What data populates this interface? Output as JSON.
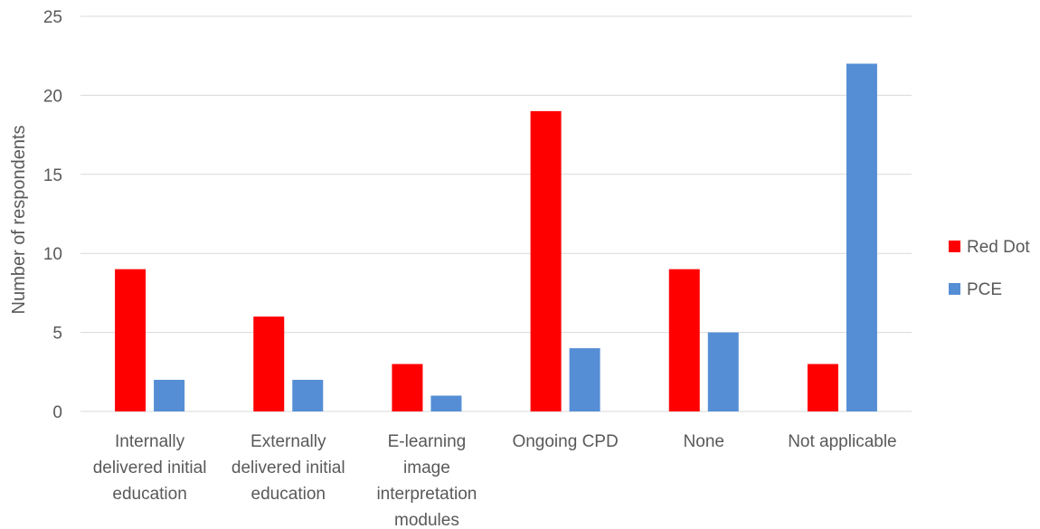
{
  "chart_data": {
    "type": "bar",
    "categories": [
      [
        "Internally",
        "delivered initial",
        "education"
      ],
      [
        "Externally",
        "delivered initial",
        "education"
      ],
      [
        "E-learning",
        "image",
        "interpretation",
        "modules"
      ],
      [
        "Ongoing CPD"
      ],
      [
        "None"
      ],
      [
        "Not applicable"
      ]
    ],
    "series": [
      {
        "name": "Red Dot",
        "color": "#ff0000",
        "values": [
          9,
          6,
          3,
          19,
          9,
          3
        ]
      },
      {
        "name": "PCE",
        "color": "#558ed5",
        "values": [
          2,
          2,
          1,
          4,
          5,
          22
        ]
      }
    ],
    "ylabel": "Number of respondents",
    "xlabel": "",
    "ylim": [
      0,
      25
    ],
    "yticks": [
      0,
      5,
      10,
      15,
      20,
      25
    ],
    "grid": true,
    "legend_position": "right"
  },
  "colors": {
    "gridline": "#d9d9d9",
    "text": "#595959"
  }
}
